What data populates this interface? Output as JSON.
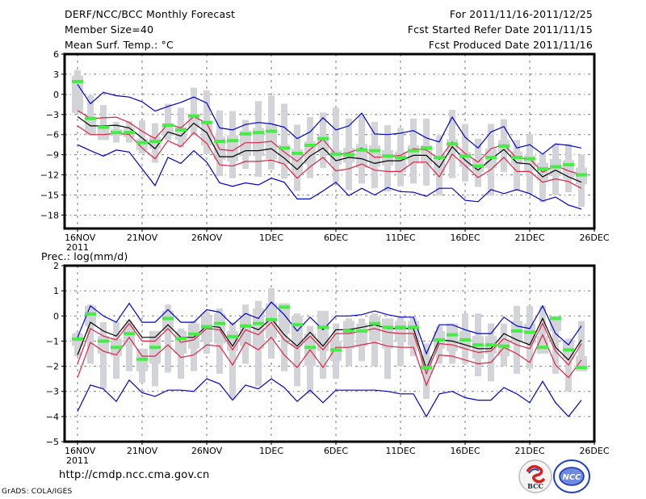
{
  "header": {
    "title": "DERF/NCC/BCC Monthly Forecast",
    "member_size": "Member Size=40",
    "variable_top": "Mean Surf. Temp.: °C",
    "period": "For 2011/11/16-2011/12/25",
    "started": "Fcst Started Refer Date 2011/11/15",
    "produced": "Fcst Produced Date 2011/11/16"
  },
  "footer": {
    "url": "http://cmdp.ncc.cma.gov.cn",
    "credit": "GrADS: COLA/IGES",
    "logo_left": "BCC",
    "logo_right": "NCC"
  },
  "colors": {
    "obs": "#44ee44",
    "box": "#d3d4d8",
    "mean": "#000000",
    "inner_band": "#dd2244",
    "outer_band": "#0000cc",
    "grid": "#777777"
  },
  "chart_data": [
    {
      "type": "line",
      "title": "Mean Surf. Temp.: °C",
      "xlabel": "",
      "ylabel": "°C",
      "x_tick_labels": [
        "16NOV",
        "21NOV",
        "26NOV",
        "1DEC",
        "6DEC",
        "11DEC",
        "16DEC",
        "21DEC",
        "26DEC"
      ],
      "x_sub_label": "2011",
      "x_range_days": [
        -1,
        40
      ],
      "ylim": [
        -20,
        6
      ],
      "yticks": [
        6,
        3,
        0,
        -3,
        -6,
        -9,
        -12,
        -15,
        -18
      ],
      "grid": true,
      "days": 40,
      "series": [
        {
          "name": "blue_upper",
          "values": [
            1.5,
            -1.4,
            0.3,
            -0.2,
            -0.4,
            -1.1,
            -2.5,
            -1.8,
            -1.2,
            -0.4,
            -1.3,
            -5.0,
            -5.3,
            -4.5,
            -4.2,
            -4.4,
            -4.9,
            -6.6,
            -5.6,
            -3.5,
            -5.3,
            -4.7,
            -2.8,
            -5.9,
            -6.0,
            -5.8,
            -5.4,
            -6.5,
            -7.1,
            -3.4,
            -6.4,
            -8.0,
            -5.6,
            -4.8,
            -8.0,
            -7.5,
            -8.9,
            -7.4,
            -7.6,
            -8.0
          ]
        },
        {
          "name": "red_upper",
          "values": [
            -2.4,
            -3.6,
            -3.5,
            -3.4,
            -4.2,
            -5.5,
            -6.6,
            -4.4,
            -5.0,
            -3.3,
            -4.3,
            -8.2,
            -8.4,
            -7.2,
            -7.2,
            -7.0,
            -8.6,
            -10.0,
            -8.2,
            -6.7,
            -9.0,
            -8.7,
            -8.0,
            -9.4,
            -9.3,
            -9.1,
            -8.1,
            -8.3,
            -9.7,
            -7.1,
            -8.8,
            -10.1,
            -8.1,
            -7.5,
            -9.5,
            -9.6,
            -11.6,
            -10.6,
            -11.4,
            -12.0
          ]
        },
        {
          "name": "ensemble_mean",
          "values": [
            -3.3,
            -4.7,
            -4.7,
            -4.6,
            -5.0,
            -6.5,
            -8.1,
            -5.6,
            -6.2,
            -4.3,
            -5.7,
            -9.3,
            -9.3,
            -8.4,
            -8.4,
            -8.1,
            -9.5,
            -11.2,
            -9.2,
            -8.0,
            -9.9,
            -9.4,
            -9.6,
            -10.3,
            -9.9,
            -9.9,
            -9.1,
            -9.1,
            -10.9,
            -7.8,
            -9.8,
            -11.3,
            -9.7,
            -8.2,
            -10.2,
            -10.4,
            -12.3,
            -11.3,
            -12.3,
            -13.1
          ]
        },
        {
          "name": "red_lower",
          "values": [
            -4.7,
            -6.0,
            -6.0,
            -5.8,
            -6.0,
            -8.0,
            -9.6,
            -6.9,
            -7.8,
            -5.7,
            -7.3,
            -10.5,
            -10.7,
            -10.0,
            -10.0,
            -9.8,
            -10.4,
            -12.5,
            -10.8,
            -9.4,
            -11.4,
            -11.1,
            -10.4,
            -11.3,
            -11.5,
            -11.5,
            -10.1,
            -10.1,
            -12.3,
            -8.9,
            -10.6,
            -12.4,
            -11.2,
            -9.4,
            -11.5,
            -11.5,
            -13.1,
            -12.6,
            -13.0,
            -14.0
          ]
        },
        {
          "name": "blue_lower",
          "values": [
            -7.5,
            -8.4,
            -9.2,
            -8.3,
            -8.6,
            -11.1,
            -13.6,
            -9.4,
            -10.3,
            -8.4,
            -10.1,
            -13.2,
            -13.7,
            -13.2,
            -13.5,
            -12.5,
            -13.1,
            -15.6,
            -15.6,
            -14.4,
            -13.1,
            -15.1,
            -14.0,
            -15.0,
            -13.9,
            -14.5,
            -14.6,
            -15.2,
            -14.0,
            -14.0,
            -15.8,
            -16.0,
            -14.2,
            -14.8,
            -14.2,
            -14.8,
            -15.9,
            -15.3,
            -16.5,
            -17.1
          ]
        },
        {
          "name": "obs_marker",
          "values": [
            1.9,
            -3.6,
            -4.9,
            -5.7,
            -5.7,
            -7.2,
            -7.0,
            -4.6,
            -5.3,
            -3.2,
            -4.2,
            -7.0,
            -6.9,
            -5.9,
            -5.7,
            -5.5,
            -8.0,
            -8.8,
            -7.6,
            -6.6,
            -8.9,
            -9.0,
            -8.3,
            -8.4,
            -9.2,
            -9.4,
            -8.4,
            -8.0,
            -9.4,
            -7.4,
            -9.2,
            -10.7,
            -9.4,
            -7.7,
            -9.4,
            -9.6,
            -11.1,
            -10.8,
            -10.5,
            -12.0
          ]
        },
        {
          "name": "box_q1",
          "values": [
            -2.8,
            -6.0,
            -6.8,
            -6.2,
            -6.4,
            -8.3,
            -8.1,
            -6.2,
            -6.8,
            -4.9,
            -7.6,
            -9.8,
            -10.0,
            -9.2,
            -9.2,
            -9.7,
            -10.4,
            -11.9,
            -10.4,
            -8.7,
            -10.5,
            -10.2,
            -11.0,
            -10.8,
            -10.6,
            -11.6,
            -10.4,
            -10.4,
            -11.9,
            -8.6,
            -10.8,
            -11.6,
            -11.0,
            -8.6,
            -10.5,
            -11.4,
            -12.8,
            -12.2,
            -12.6,
            -13.4
          ]
        },
        {
          "name": "box_q3",
          "values": [
            2.8,
            -3.3,
            -4.6,
            -5.2,
            -5.0,
            -6.6,
            -6.3,
            -4.3,
            -4.9,
            -3.0,
            -3.9,
            -6.3,
            -6.1,
            -5.4,
            -5.0,
            -4.5,
            -7.5,
            -8.2,
            -7.0,
            -6.1,
            -8.4,
            -8.0,
            -7.4,
            -7.6,
            -8.3,
            -8.5,
            -7.6,
            -7.6,
            -9.0,
            -6.7,
            -8.6,
            -9.6,
            -8.1,
            -6.8,
            -8.5,
            -9.1,
            -10.2,
            -9.6,
            -9.8,
            -10.9
          ]
        },
        {
          "name": "whisker_min",
          "values": [
            -1.2,
            -6.1,
            -6.8,
            -7.2,
            -7.2,
            -8.8,
            -10.2,
            -6.8,
            -7.9,
            -6.1,
            -8.9,
            -12.2,
            -12.5,
            -11.1,
            -12.3,
            -11.2,
            -12.6,
            -14.4,
            -12.5,
            -11.0,
            -13.1,
            -14.3,
            -13.3,
            -14.0,
            -14.5,
            -13.7,
            -13.3,
            -13.6,
            -15.1,
            -12.5,
            -13.0,
            -13.8,
            -15.1,
            -11.6,
            -14.4,
            -14.8,
            -16.1,
            -15.0,
            -14.6,
            -16.8
          ]
        },
        {
          "name": "whisker_max",
          "values": [
            3.6,
            -0.1,
            -1.6,
            -4.1,
            -4.0,
            -3.9,
            -4.3,
            -1.4,
            -2.0,
            1.0,
            0.6,
            -2.4,
            -2.5,
            -3.8,
            -1.0,
            -0.2,
            -1.4,
            -4.5,
            -3.4,
            -2.7,
            -2.0,
            -3.6,
            -3.0,
            -4.1,
            -4.6,
            -5.0,
            -3.6,
            -3.6,
            -6.1,
            -2.3,
            -4.4,
            -6.6,
            -4.4,
            -3.7,
            -6.8,
            -5.9,
            -8.8,
            -7.5,
            -7.4,
            -9.0
          ]
        }
      ]
    },
    {
      "type": "line",
      "title": "Prec.: log(mm/d)",
      "xlabel": "",
      "ylabel": "log(mm/d)",
      "x_tick_labels": [
        "16NOV",
        "21NOV",
        "26NOV",
        "1DEC",
        "6DEC",
        "11DEC",
        "16DEC",
        "21DEC",
        "26DEC"
      ],
      "x_sub_label": "2011",
      "x_range_days": [
        -1,
        40
      ],
      "ylim": [
        -5,
        2
      ],
      "yticks": [
        2,
        1,
        0,
        -1,
        -2,
        -3,
        -4,
        -5
      ],
      "grid": true,
      "days": 40,
      "series": [
        {
          "name": "blue_upper",
          "values": [
            -0.85,
            0.4,
            0.0,
            -0.25,
            0.5,
            -0.25,
            -0.25,
            0.25,
            -0.25,
            -0.25,
            0.25,
            0.15,
            -0.35,
            0.1,
            -0.1,
            0.55,
            0.05,
            -0.6,
            -0.05,
            -0.55,
            0.0,
            0.0,
            0.05,
            0.2,
            0.05,
            -0.05,
            -0.05,
            -1.5,
            -0.35,
            -0.35,
            -0.55,
            -0.7,
            -0.7,
            -0.05,
            -0.4,
            -0.5,
            0.4,
            -0.7,
            -1.15,
            -0.4
          ]
        },
        {
          "name": "red_upper",
          "values": [
            -1.9,
            -0.5,
            -0.8,
            -0.95,
            -0.3,
            -1.0,
            -1.0,
            -0.5,
            -1.05,
            -0.95,
            -0.5,
            -0.55,
            -1.35,
            -0.55,
            -0.75,
            -0.25,
            -0.95,
            -1.3,
            -0.8,
            -1.35,
            -0.7,
            -0.7,
            -0.6,
            -0.5,
            -0.65,
            -0.7,
            -0.7,
            -2.3,
            -1.1,
            -1.15,
            -1.3,
            -1.45,
            -1.4,
            -0.9,
            -1.15,
            -1.3,
            -0.3,
            -1.4,
            -1.95,
            -1.1
          ]
        },
        {
          "name": "ensemble_mean",
          "values": [
            -1.55,
            -0.25,
            -0.6,
            -0.8,
            -0.15,
            -0.85,
            -0.85,
            -0.35,
            -0.85,
            -0.85,
            -0.4,
            -0.45,
            -1.2,
            -0.35,
            -0.55,
            -0.1,
            -0.75,
            -1.2,
            -0.65,
            -1.2,
            -0.55,
            -0.55,
            -0.45,
            -0.35,
            -0.5,
            -0.5,
            -0.5,
            -2.1,
            -0.95,
            -1.0,
            -1.15,
            -1.3,
            -1.3,
            -0.7,
            -0.95,
            -1.15,
            -0.1,
            -1.25,
            -1.75,
            -0.95
          ]
        },
        {
          "name": "red_lower",
          "values": [
            -2.45,
            -1.05,
            -1.4,
            -1.55,
            -0.85,
            -1.6,
            -1.6,
            -1.15,
            -1.65,
            -1.55,
            -1.15,
            -1.2,
            -1.95,
            -1.05,
            -1.35,
            -0.85,
            -1.55,
            -2.05,
            -1.35,
            -2.05,
            -1.25,
            -1.25,
            -1.15,
            -1.05,
            -1.2,
            -1.25,
            -1.25,
            -2.75,
            -1.55,
            -1.6,
            -1.75,
            -1.9,
            -1.85,
            -1.25,
            -1.5,
            -1.85,
            -0.75,
            -1.95,
            -2.45,
            -1.75
          ]
        },
        {
          "name": "blue_lower",
          "values": [
            -3.8,
            -2.75,
            -2.9,
            -3.4,
            -2.55,
            -3.05,
            -3.2,
            -2.95,
            -2.95,
            -3.0,
            -2.5,
            -2.7,
            -3.35,
            -2.75,
            -2.9,
            -2.5,
            -2.85,
            -3.4,
            -2.95,
            -3.45,
            -2.95,
            -2.95,
            -2.95,
            -2.95,
            -3.0,
            -3.1,
            -3.1,
            -4.0,
            -3.1,
            -3.0,
            -3.25,
            -3.35,
            -3.35,
            -2.85,
            -3.1,
            -3.45,
            -2.6,
            -3.45,
            -4.0,
            -3.35
          ]
        },
        {
          "name": "obs_marker",
          "values": [
            -0.92,
            0.08,
            -1.0,
            -1.25,
            -0.7,
            -1.72,
            -1.25,
            -0.1,
            -0.9,
            -0.72,
            -0.43,
            -0.3,
            -0.82,
            -0.4,
            -0.3,
            -0.15,
            0.35,
            -0.35,
            -1.25,
            -0.45,
            -1.35,
            -0.6,
            -0.6,
            -0.3,
            -0.45,
            -0.45,
            -0.45,
            -2.05,
            -0.95,
            -0.75,
            -0.95,
            -1.15,
            -1.15,
            -1.2,
            -0.6,
            -0.65,
            -1.25,
            -0.1,
            -1.35,
            -2.05
          ]
        },
        {
          "name": "box_q1",
          "values": [
            -1.2,
            -0.4,
            -1.5,
            -1.6,
            -1.2,
            -2.2,
            -1.9,
            -0.6,
            -1.5,
            -1.3,
            -1.0,
            -1.1,
            -1.4,
            -1.2,
            -1.3,
            -0.9,
            -0.7,
            -1.2,
            -2.0,
            -1.4,
            -1.8,
            -1.3,
            -1.2,
            -1.0,
            -1.3,
            -1.0,
            -1.2,
            -2.3,
            -1.3,
            -1.4,
            -1.3,
            -1.7,
            -1.5,
            -1.6,
            -1.0,
            -1.1,
            -1.5,
            -0.6,
            -1.7,
            -2.2
          ]
        },
        {
          "name": "box_q3",
          "values": [
            -0.7,
            0.4,
            -0.8,
            -0.9,
            -0.4,
            -1.3,
            -0.6,
            0.2,
            -0.6,
            -0.3,
            0.0,
            0.1,
            -0.6,
            0.0,
            0.3,
            0.5,
            0.5,
            0.0,
            -0.7,
            0.2,
            -1.0,
            -0.2,
            -0.3,
            0.0,
            -0.1,
            -0.2,
            -0.2,
            -1.6,
            -0.6,
            -0.3,
            -0.6,
            -0.8,
            -0.8,
            -0.9,
            -0.2,
            -0.3,
            -0.8,
            0.0,
            -1.0,
            -1.6
          ]
        },
        {
          "name": "whisker_min",
          "values": [
            -1.6,
            -1.9,
            -2.9,
            -2.5,
            -2.2,
            -2.65,
            -2.8,
            -2.25,
            -2.5,
            -2.2,
            -1.5,
            -2.3,
            -3.3,
            -1.9,
            -2.8,
            -1.7,
            -2.2,
            -2.8,
            -3.1,
            -2.5,
            -2.5,
            -2.0,
            -1.8,
            -2.0,
            -2.5,
            -2.0,
            -1.6,
            -3.3,
            -1.9,
            -1.9,
            -1.9,
            -2.4,
            -2.6,
            -2.0,
            -2.3,
            -2.1,
            -1.0,
            -2.3,
            -3.0,
            -2.0
          ]
        },
        {
          "name": "whisker_max",
          "values": [
            -0.65,
            0.45,
            -0.25,
            -0.25,
            -0.2,
            -1.4,
            -0.65,
            0.45,
            -0.5,
            -0.2,
            0.15,
            0.3,
            -0.25,
            0.45,
            0.6,
            1.1,
            0.5,
            0.1,
            -0.4,
            -0.4,
            -0.3,
            -0.1,
            -0.1,
            0.1,
            -0.25,
            0.0,
            -0.05,
            -1.1,
            -0.4,
            -0.4,
            0.1,
            0.1,
            -0.3,
            -0.3,
            0.4,
            0.4,
            0.4,
            -0.5,
            -0.9,
            -0.2
          ]
        }
      ]
    }
  ]
}
